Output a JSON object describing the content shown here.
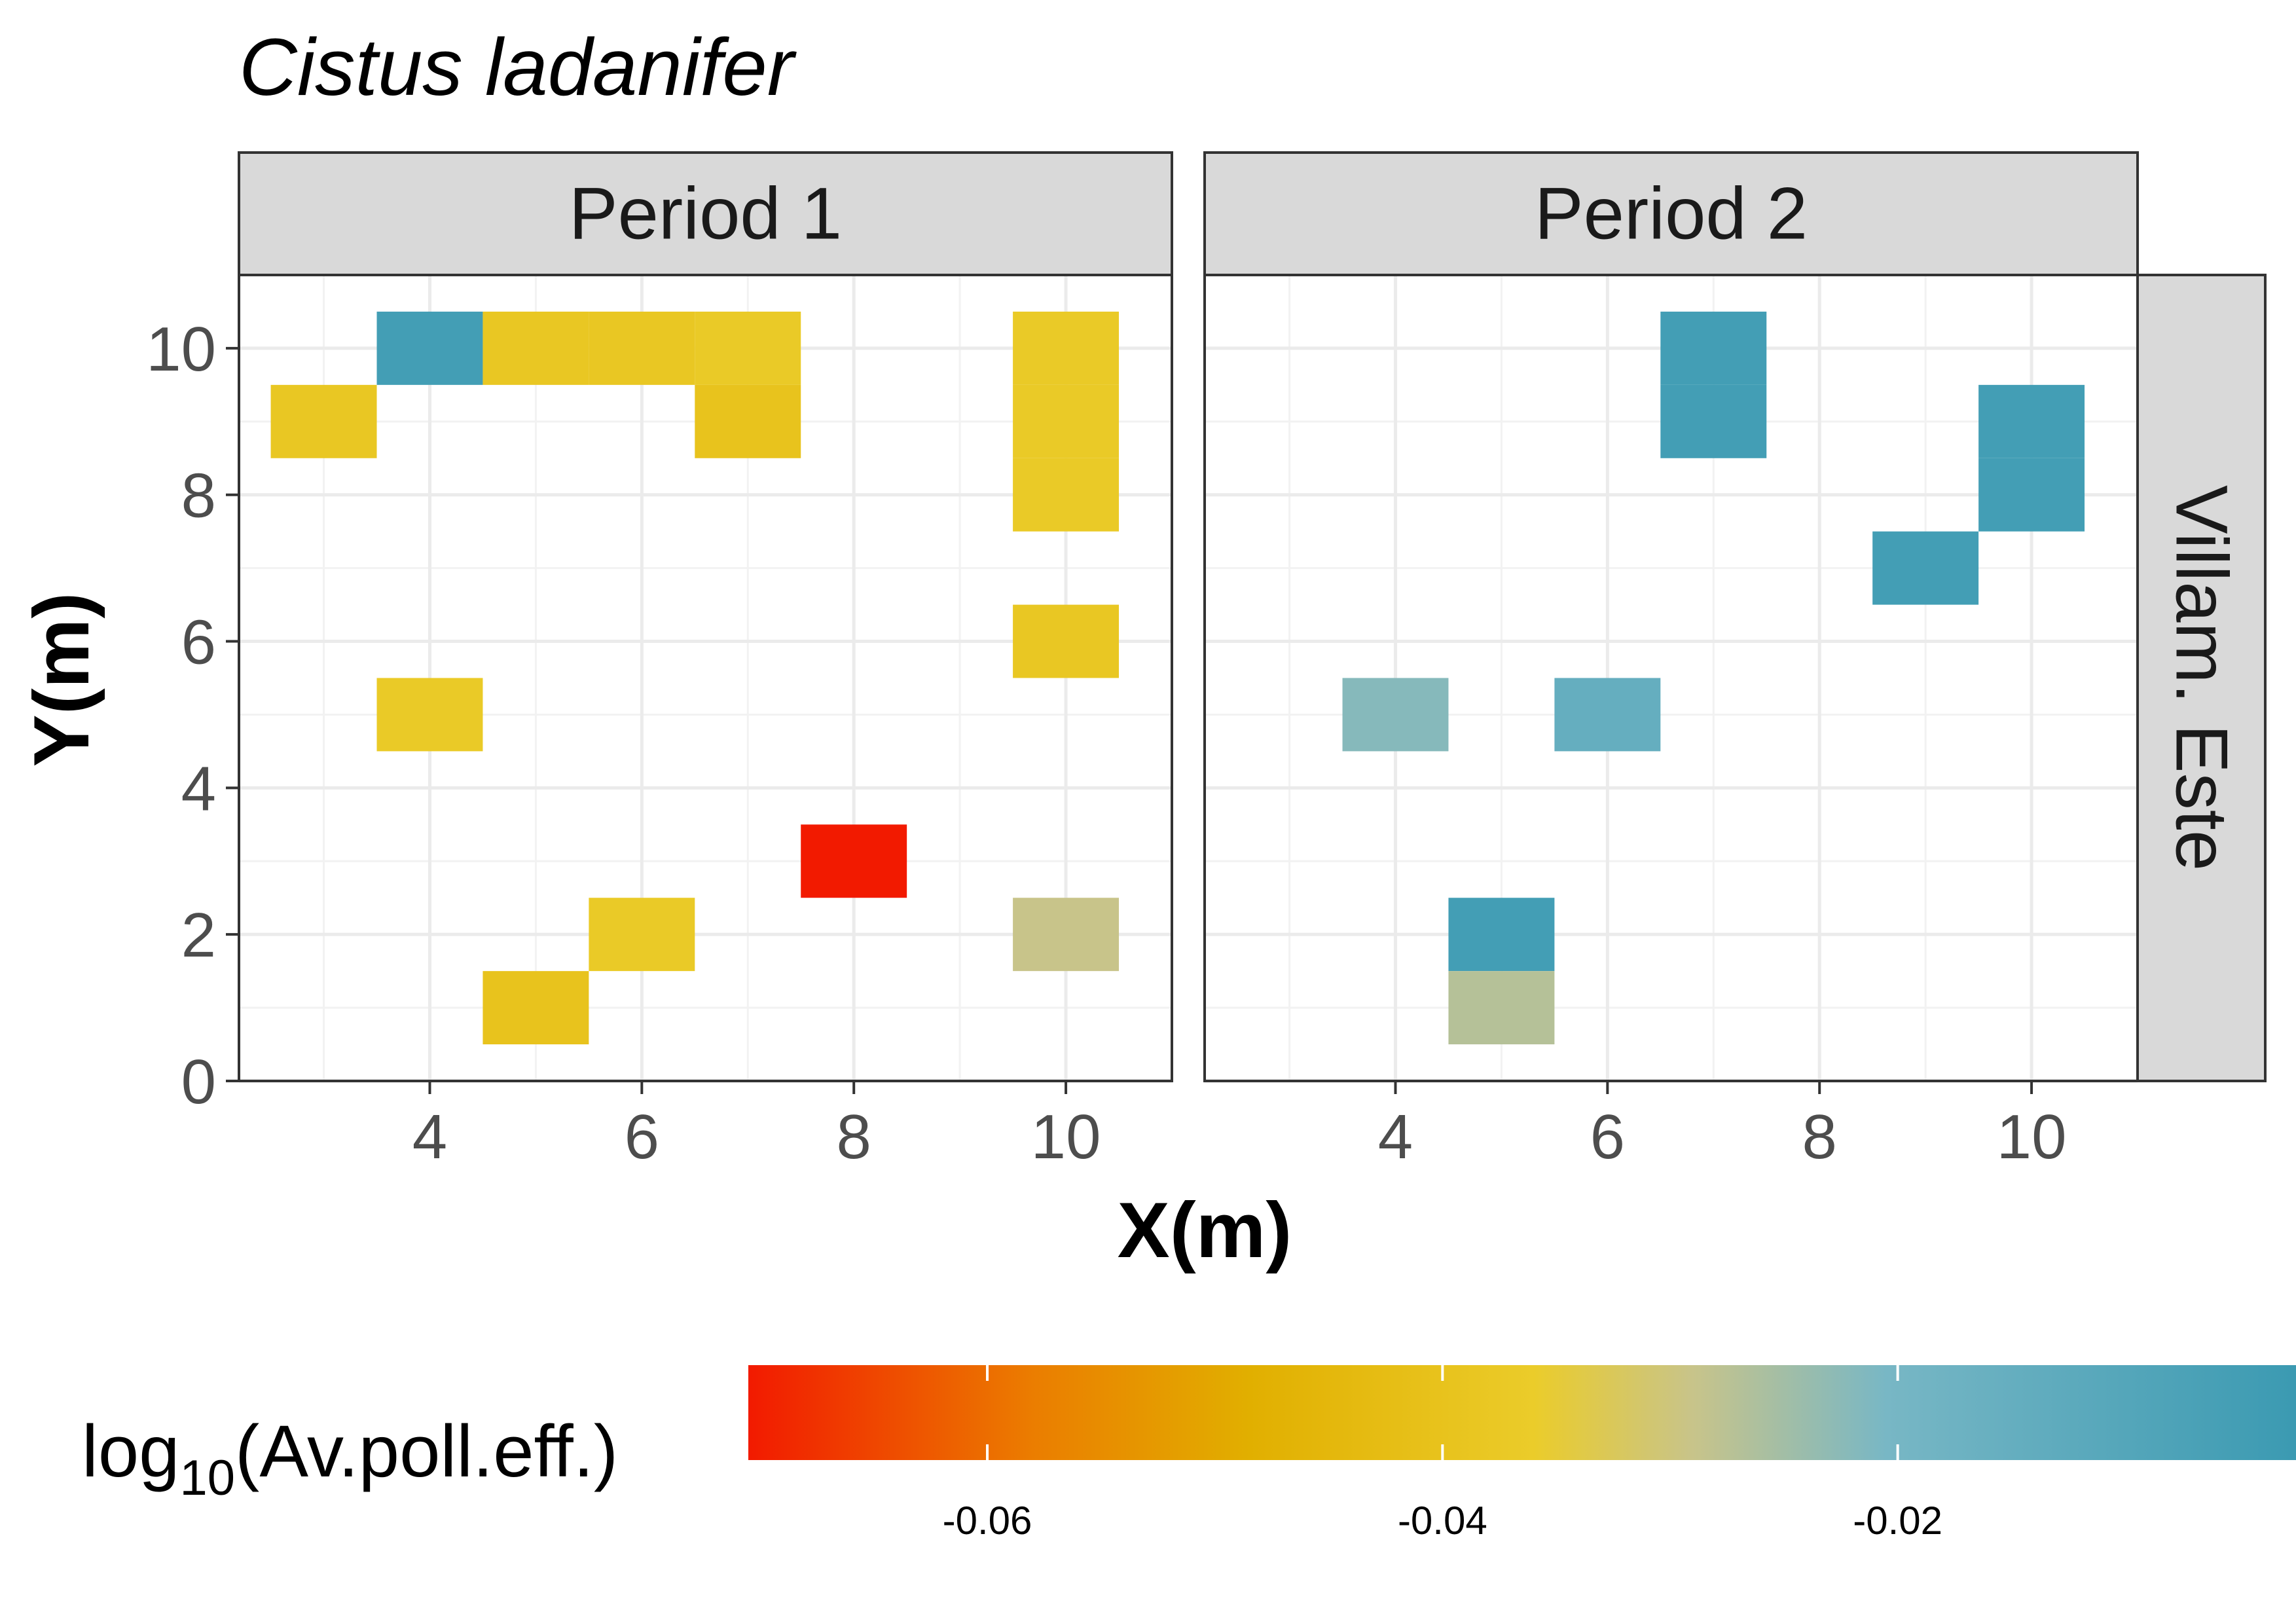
{
  "chart_data": {
    "type": "heatmap",
    "title": "Cistus ladanifer",
    "xlabel": "X(m)",
    "ylabel": "Y(m)",
    "facet_row_label": "Villam. Este",
    "x_ticks": [
      4,
      6,
      8,
      10
    ],
    "y_ticks": [
      0,
      2,
      4,
      6,
      8,
      10
    ],
    "xlim": [
      2.2,
      11.0
    ],
    "ylim": [
      0,
      11.0
    ],
    "grid": true,
    "legend": {
      "title_base": "log",
      "title_sub": "10",
      "title_arg": "(Av.poll.eff.)",
      "position": "bottom",
      "min": -0.0705,
      "max": -0.0025,
      "ticks": [
        -0.06,
        -0.04,
        -0.02
      ],
      "tick_labels": [
        "-0.06",
        "-0.04",
        "-0.02"
      ],
      "color_stops": [
        {
          "value": -0.0705,
          "color": "#f21a00"
        },
        {
          "value": -0.058,
          "color": "#eb7d00"
        },
        {
          "value": -0.0485,
          "color": "#e1af00"
        },
        {
          "value": -0.036,
          "color": "#ebcc2a"
        },
        {
          "value": -0.029,
          "color": "#c8c48a"
        },
        {
          "value": -0.0205,
          "color": "#78b7c5"
        },
        {
          "value": -0.0025,
          "color": "#3b9ab2"
        }
      ]
    },
    "panels": [
      {
        "label": "Period 1",
        "cells": [
          {
            "x": 4,
            "y": 10,
            "value": -0.005
          },
          {
            "x": 5,
            "y": 10,
            "value": -0.038
          },
          {
            "x": 6,
            "y": 10,
            "value": -0.038
          },
          {
            "x": 7,
            "y": 10,
            "value": -0.037
          },
          {
            "x": 3,
            "y": 9,
            "value": -0.038
          },
          {
            "x": 7,
            "y": 9,
            "value": -0.04
          },
          {
            "x": 10,
            "y": 10,
            "value": -0.037
          },
          {
            "x": 10,
            "y": 9,
            "value": -0.037
          },
          {
            "x": 10,
            "y": 8,
            "value": -0.037
          },
          {
            "x": 10,
            "y": 6,
            "value": -0.038
          },
          {
            "x": 4,
            "y": 5,
            "value": -0.037
          },
          {
            "x": 8,
            "y": 3,
            "value": -0.0705
          },
          {
            "x": 6,
            "y": 2,
            "value": -0.037
          },
          {
            "x": 10,
            "y": 2,
            "value": -0.029
          },
          {
            "x": 5,
            "y": 1,
            "value": -0.04
          }
        ]
      },
      {
        "label": "Period 2",
        "cells": [
          {
            "x": 7,
            "y": 10,
            "value": -0.005
          },
          {
            "x": 7,
            "y": 9,
            "value": -0.005
          },
          {
            "x": 10,
            "y": 9,
            "value": -0.005
          },
          {
            "x": 10,
            "y": 8,
            "value": -0.005
          },
          {
            "x": 9,
            "y": 7,
            "value": -0.005
          },
          {
            "x": 4,
            "y": 5,
            "value": -0.022
          },
          {
            "x": 6,
            "y": 5,
            "value": -0.015
          },
          {
            "x": 5,
            "y": 2,
            "value": -0.005
          },
          {
            "x": 5,
            "y": 1,
            "value": -0.027
          }
        ]
      }
    ]
  }
}
